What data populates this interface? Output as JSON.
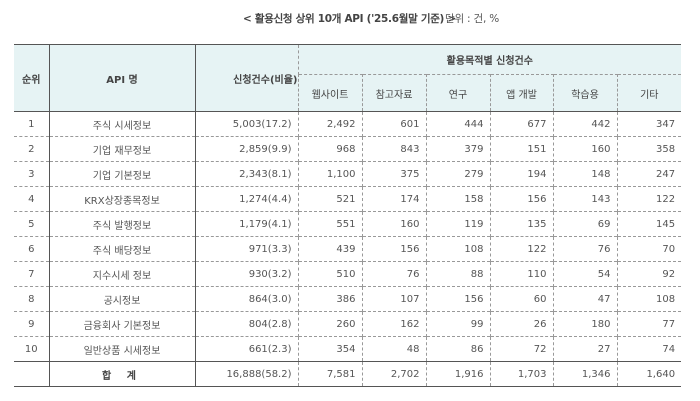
{
  "caption": {
    "title": "< 활용신청 상위 10개 API ('25.6월말 기준) >",
    "unit": "단위 : 건, %"
  },
  "table": {
    "headers": {
      "rank": "순위",
      "api_name": "API 명",
      "total_requests": "신청건수(비율)",
      "purpose_group": "활용목적별 신청건수",
      "purposes": [
        "웹사이트",
        "참고자료",
        "연구",
        "앱 개발",
        "학습용",
        "기타"
      ]
    },
    "rows": [
      {
        "rank": "1",
        "name": "주식 시세정보",
        "total": "5,003(17.2)",
        "values": [
          "2,492",
          "601",
          "444",
          "677",
          "442",
          "347"
        ]
      },
      {
        "rank": "2",
        "name": "기업 재무정보",
        "total": "2,859(9.9)",
        "values": [
          "968",
          "843",
          "379",
          "151",
          "160",
          "358"
        ]
      },
      {
        "rank": "3",
        "name": "기업 기본정보",
        "total": "2,343(8.1)",
        "values": [
          "1,100",
          "375",
          "279",
          "194",
          "148",
          "247"
        ]
      },
      {
        "rank": "4",
        "name": "KRX상장종목정보",
        "total": "1,274(4.4)",
        "values": [
          "521",
          "174",
          "158",
          "156",
          "143",
          "122"
        ]
      },
      {
        "rank": "5",
        "name": "주식 발행정보",
        "total": "1,179(4.1)",
        "values": [
          "551",
          "160",
          "119",
          "135",
          "69",
          "145"
        ]
      },
      {
        "rank": "6",
        "name": "주식 배당정보",
        "total": "971(3.3)",
        "values": [
          "439",
          "156",
          "108",
          "122",
          "76",
          "70"
        ]
      },
      {
        "rank": "7",
        "name": "지수시세 정보",
        "total": "930(3.2)",
        "values": [
          "510",
          "76",
          "88",
          "110",
          "54",
          "92"
        ]
      },
      {
        "rank": "8",
        "name": "공시정보",
        "total": "864(3.0)",
        "values": [
          "386",
          "107",
          "156",
          "60",
          "47",
          "108"
        ]
      },
      {
        "rank": "9",
        "name": "금융회사 기본정보",
        "total": "804(2.8)",
        "values": [
          "260",
          "162",
          "99",
          "26",
          "180",
          "77"
        ]
      },
      {
        "rank": "10",
        "name": "일반상품 시세정보",
        "total": "661(2.3)",
        "values": [
          "354",
          "48",
          "86",
          "72",
          "27",
          "74"
        ]
      }
    ],
    "total_row": {
      "label": "합 계",
      "total": "16,888(58.2)",
      "values": [
        "7,581",
        "2,702",
        "1,916",
        "1,703",
        "1,346",
        "1,640"
      ]
    }
  },
  "colors": {
    "header_bg": "#e6f3f4",
    "border": "#555555",
    "dashed": "#999999"
  }
}
